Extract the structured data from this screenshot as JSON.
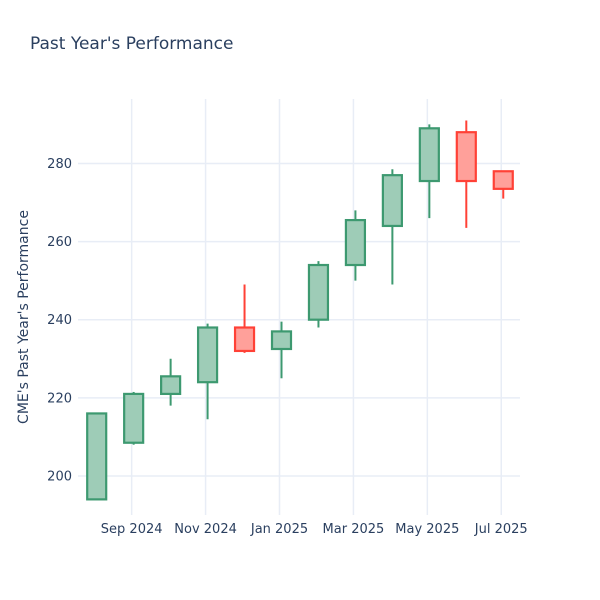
{
  "title": "Past Year's Performance",
  "chart_data": {
    "type": "candlestick",
    "title": "Past Year's Performance",
    "xlabel": "",
    "ylabel": "CME's Past Year's Performance",
    "x_tick_labels": [
      "Sep 2024",
      "Nov 2024",
      "Jan 2025",
      "Mar 2025",
      "May 2025",
      "Jul 2025"
    ],
    "tick_candle_indices": [
      1,
      3,
      5,
      7,
      9,
      11
    ],
    "y_ticks": [
      200,
      220,
      240,
      260,
      280
    ],
    "ylim": [
      190,
      296.5
    ],
    "grid": true,
    "legend": "none",
    "background": "#ffffff",
    "colors": {
      "increasing_line": "#3D9970",
      "increasing_fill": "#9ECCB7",
      "decreasing_line": "#FF4136",
      "decreasing_fill": "#FFA09A",
      "text": "#2a3f5f",
      "gridline": "#E8EDF6"
    },
    "candles": [
      {
        "period": "Aug 2024",
        "open": 194,
        "high": 216,
        "low": 194,
        "close": 216
      },
      {
        "period": "Sep 2024",
        "open": 208.5,
        "high": 221.5,
        "low": 208,
        "close": 221
      },
      {
        "period": "Oct 2024",
        "open": 221,
        "high": 230,
        "low": 218,
        "close": 225.5
      },
      {
        "period": "Nov 2024",
        "open": 224,
        "high": 239,
        "low": 214.5,
        "close": 238
      },
      {
        "period": "Dec 2024",
        "open": 238,
        "high": 249,
        "low": 231.5,
        "close": 232
      },
      {
        "period": "Jan 2025",
        "open": 232.5,
        "high": 239.5,
        "low": 225,
        "close": 237
      },
      {
        "period": "Feb 2025",
        "open": 240,
        "high": 255,
        "low": 238,
        "close": 254
      },
      {
        "period": "Mar 2025",
        "open": 254,
        "high": 268,
        "low": 250,
        "close": 265.5
      },
      {
        "period": "Apr 2025",
        "open": 264,
        "high": 278.5,
        "low": 249,
        "close": 277
      },
      {
        "period": "May 2025",
        "open": 275.5,
        "high": 290,
        "low": 266,
        "close": 289
      },
      {
        "period": "Jun 2025",
        "open": 288,
        "high": 291,
        "low": 263.5,
        "close": 275.5
      },
      {
        "period": "Jul 2025",
        "open": 278,
        "high": 278,
        "low": 271,
        "close": 273.5
      }
    ]
  }
}
